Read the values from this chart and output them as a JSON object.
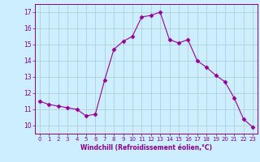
{
  "x": [
    0,
    1,
    2,
    3,
    4,
    5,
    6,
    7,
    8,
    9,
    10,
    11,
    12,
    13,
    14,
    15,
    16,
    17,
    18,
    19,
    20,
    21,
    22,
    23
  ],
  "y": [
    11.5,
    11.3,
    11.2,
    11.1,
    11.0,
    10.6,
    10.7,
    12.8,
    14.7,
    15.2,
    15.5,
    16.7,
    16.8,
    17.0,
    15.3,
    15.1,
    15.3,
    14.0,
    13.6,
    13.1,
    12.7,
    11.7,
    10.4,
    9.9
  ],
  "line_color": "#990099",
  "marker": "D",
  "marker_size": 2.5,
  "bg_color": "#cceeff",
  "grid_color": "#aacccc",
  "xlabel": "Windchill (Refroidissement éolien,°C)",
  "xlim": [
    -0.5,
    23.5
  ],
  "ylim": [
    9.5,
    17.5
  ],
  "yticks": [
    10,
    11,
    12,
    13,
    14,
    15,
    16,
    17
  ],
  "xticks": [
    0,
    1,
    2,
    3,
    4,
    5,
    6,
    7,
    8,
    9,
    10,
    11,
    12,
    13,
    14,
    15,
    16,
    17,
    18,
    19,
    20,
    21,
    22,
    23
  ]
}
